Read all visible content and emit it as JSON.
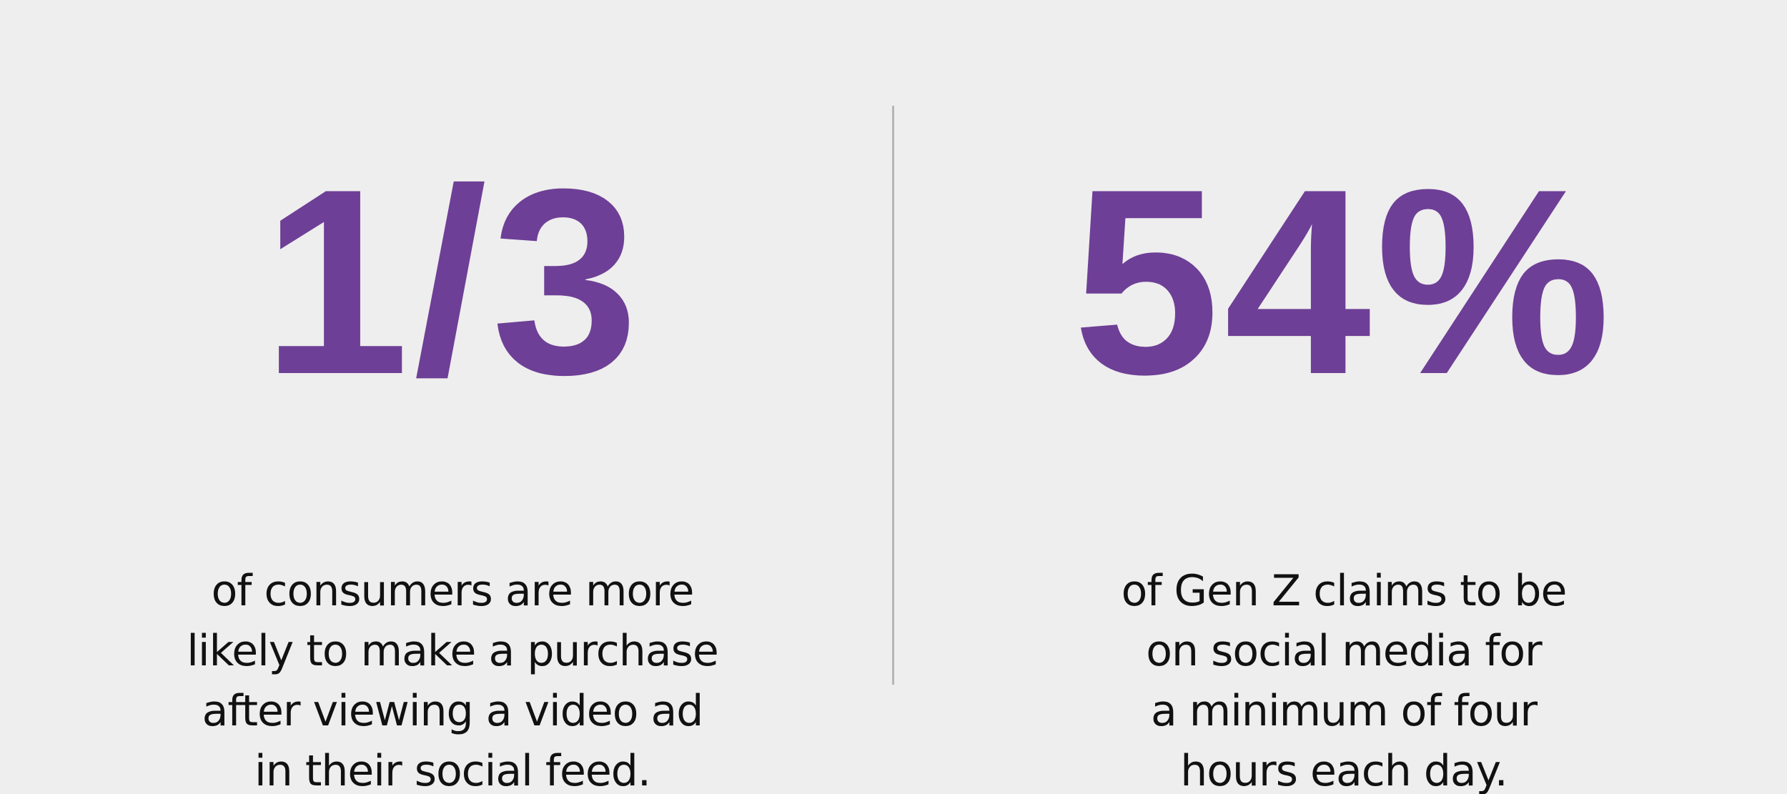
{
  "colors": {
    "background": "#eeeeee",
    "accent": "#6e3f96",
    "text": "#111111",
    "divider": "#b5b5b5"
  },
  "stats": [
    {
      "value": "1/3",
      "description_lines": [
        "of consumers are more",
        "likely to make a purchase",
        "after viewing a video ad",
        "in their social feed."
      ]
    },
    {
      "value": "54%",
      "description_lines": [
        "of Gen Z claims to be",
        "on social media for",
        "a minimum of four",
        "hours each day."
      ]
    }
  ]
}
